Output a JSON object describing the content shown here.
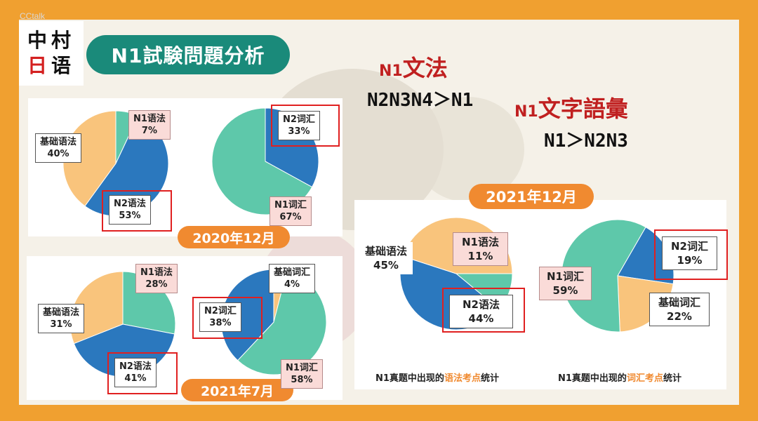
{
  "watermark": "CCtalk",
  "logo": {
    "chars": [
      "中",
      "村",
      "日",
      "语"
    ]
  },
  "title": "N1試験問題分析",
  "headings": {
    "grammar": {
      "prefix": "N1",
      "title": "文法",
      "relation": "N2N3N4＞N1"
    },
    "vocab": {
      "prefix": "N1",
      "title": "文字語彙",
      "relation": "N1＞N2N3"
    }
  },
  "periods": {
    "p1": "2020年12月",
    "p2": "2021年7月",
    "p3": "2021年12月"
  },
  "captions": {
    "grammar": {
      "before": "N1真题中出现的",
      "highlight": "语法考点",
      "after": "统计"
    },
    "vocab": {
      "before": "N1真题中出现的",
      "highlight": "词汇考点",
      "after": "统计"
    }
  },
  "colors": {
    "blue": "#2b78be",
    "orange": "#f9c47c",
    "green": "#5ec8aa",
    "red": "#e02020",
    "accent": "#f08a30",
    "teal": "#1a8a7a"
  },
  "chart_data": [
    {
      "type": "pie",
      "period": "2020年12月",
      "slices": [
        {
          "label": "N1语法",
          "value": 7
        },
        {
          "label": "N2语法",
          "value": 53
        },
        {
          "label": "基础语法",
          "value": 40
        }
      ]
    },
    {
      "type": "pie",
      "period": "2020年12月",
      "slices": [
        {
          "label": "N2词汇",
          "value": 33
        },
        {
          "label": "N1词汇",
          "value": 67
        }
      ]
    },
    {
      "type": "pie",
      "period": "2021年7月",
      "slices": [
        {
          "label": "N1语法",
          "value": 28
        },
        {
          "label": "N2语法",
          "value": 41
        },
        {
          "label": "基础语法",
          "value": 31
        }
      ]
    },
    {
      "type": "pie",
      "period": "2021年7月",
      "slices": [
        {
          "label": "基础词汇",
          "value": 4
        },
        {
          "label": "N1词汇",
          "value": 58
        },
        {
          "label": "N2词汇",
          "value": 38
        }
      ]
    },
    {
      "type": "pie",
      "period": "2021年12月",
      "title": "N1真题中出现的语法考点统计",
      "slices": [
        {
          "label": "N1语法",
          "value": 11
        },
        {
          "label": "N2语法",
          "value": 44
        },
        {
          "label": "基础语法",
          "value": 45
        }
      ]
    },
    {
      "type": "pie",
      "period": "2021年12月",
      "title": "N1真题中出现的词汇考点统计",
      "slices": [
        {
          "label": "N2词汇",
          "value": 19
        },
        {
          "label": "基础词汇",
          "value": 22
        },
        {
          "label": "N1词汇",
          "value": 59
        }
      ]
    }
  ]
}
